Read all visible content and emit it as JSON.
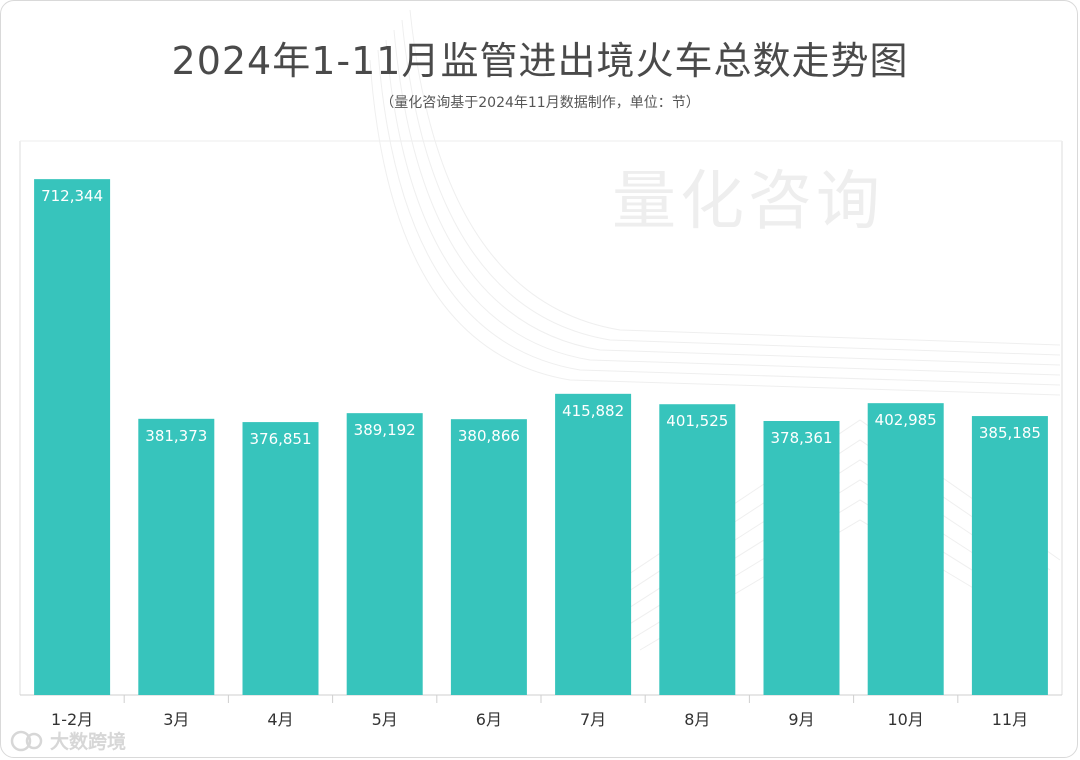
{
  "title": "2024年1-11月监管进出境火车总数走势图",
  "subtitle": "（量化咨询基于2024年11月数据制作，单位：节）",
  "watermark": "量化咨询",
  "brand": "大数跨境",
  "colors": {
    "bar": "#37C4BC",
    "grid": "#e8e8e8",
    "axis": "#cfcfcf",
    "bar_label": "#ffffff",
    "tick_label": "#333333"
  },
  "chart_data": {
    "type": "bar",
    "title": "2024年1-11月监管进出境火车总数走势图",
    "subtitle": "（量化咨询基于2024年11月数据制作，单位：节）",
    "categories": [
      "1-2月",
      "3月",
      "4月",
      "5月",
      "6月",
      "7月",
      "8月",
      "9月",
      "10月",
      "11月"
    ],
    "values": [
      712344,
      381373,
      376851,
      389192,
      380866,
      415882,
      401525,
      378361,
      402985,
      385185
    ],
    "value_labels": [
      "712,344",
      "381,373",
      "376,851",
      "389,192",
      "380,866",
      "415,882",
      "401,525",
      "378,361",
      "402,985",
      "385,185"
    ],
    "ylim": [
      0,
      765000
    ],
    "xlabel": "",
    "ylabel": "",
    "grid": false,
    "legend": "none"
  }
}
